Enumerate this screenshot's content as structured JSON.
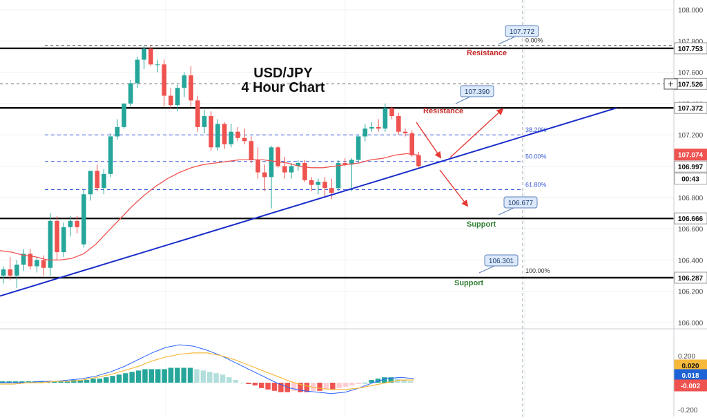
{
  "chart_data": [
    {
      "type": "candlestick",
      "title": "USD/JPY",
      "subtitle": "4 Hour Chart",
      "y_axis": {
        "ylim": [
          105.93,
          108.09
        ],
        "ticks": [
          "108.000",
          "107.800",
          "107.600",
          "107.400",
          "107.200",
          "107.000",
          "106.800",
          "106.600",
          "106.400",
          "106.200",
          "106.000"
        ],
        "position": "right"
      },
      "grid": true,
      "candles": [
        {
          "o": 106.3,
          "h": 106.36,
          "l": 106.25,
          "c": 106.34
        },
        {
          "o": 106.34,
          "h": 106.42,
          "l": 106.27,
          "c": 106.3
        },
        {
          "o": 106.3,
          "h": 106.4,
          "l": 106.22,
          "c": 106.37
        },
        {
          "o": 106.37,
          "h": 106.47,
          "l": 106.33,
          "c": 106.44
        },
        {
          "o": 106.44,
          "h": 106.47,
          "l": 106.34,
          "c": 106.36
        },
        {
          "o": 106.36,
          "h": 106.42,
          "l": 106.32,
          "c": 106.4
        },
        {
          "o": 106.4,
          "h": 106.43,
          "l": 106.3,
          "c": 106.35
        },
        {
          "o": 106.35,
          "h": 106.7,
          "l": 106.3,
          "c": 106.65
        },
        {
          "o": 106.65,
          "h": 106.68,
          "l": 106.4,
          "c": 106.45
        },
        {
          "o": 106.45,
          "h": 106.64,
          "l": 106.42,
          "c": 106.61
        },
        {
          "o": 106.61,
          "h": 106.68,
          "l": 106.55,
          "c": 106.65
        },
        {
          "o": 106.65,
          "h": 106.68,
          "l": 106.57,
          "c": 106.61
        },
        {
          "o": 106.5,
          "h": 106.85,
          "l": 106.48,
          "c": 106.82
        },
        {
          "o": 106.82,
          "h": 106.97,
          "l": 106.78,
          "c": 106.97
        },
        {
          "o": 106.97,
          "h": 107.01,
          "l": 106.84,
          "c": 106.86
        },
        {
          "o": 106.86,
          "h": 106.98,
          "l": 106.82,
          "c": 106.95
        },
        {
          "o": 106.95,
          "h": 107.21,
          "l": 106.93,
          "c": 107.19
        },
        {
          "o": 107.19,
          "h": 107.3,
          "l": 107.17,
          "c": 107.25
        },
        {
          "o": 107.25,
          "h": 107.4,
          "l": 107.24,
          "c": 107.4
        },
        {
          "o": 107.4,
          "h": 107.55,
          "l": 107.38,
          "c": 107.53
        },
        {
          "o": 107.53,
          "h": 107.7,
          "l": 107.5,
          "c": 107.68
        },
        {
          "o": 107.68,
          "h": 107.77,
          "l": 107.62,
          "c": 107.75
        },
        {
          "o": 107.75,
          "h": 107.77,
          "l": 107.64,
          "c": 107.65
        },
        {
          "o": 107.65,
          "h": 107.68,
          "l": 107.6,
          "c": 107.65
        },
        {
          "o": 107.65,
          "h": 107.68,
          "l": 107.38,
          "c": 107.45
        },
        {
          "o": 107.45,
          "h": 107.5,
          "l": 107.37,
          "c": 107.39
        },
        {
          "o": 107.39,
          "h": 107.52,
          "l": 107.35,
          "c": 107.5
        },
        {
          "o": 107.5,
          "h": 107.6,
          "l": 107.44,
          "c": 107.58
        },
        {
          "o": 107.58,
          "h": 107.64,
          "l": 107.38,
          "c": 107.42
        },
        {
          "o": 107.42,
          "h": 107.45,
          "l": 107.22,
          "c": 107.25
        },
        {
          "o": 107.25,
          "h": 107.36,
          "l": 107.21,
          "c": 107.32
        },
        {
          "o": 107.32,
          "h": 107.35,
          "l": 107.1,
          "c": 107.12
        },
        {
          "o": 107.12,
          "h": 107.3,
          "l": 107.1,
          "c": 107.27
        },
        {
          "o": 107.27,
          "h": 107.28,
          "l": 107.11,
          "c": 107.14
        },
        {
          "o": 107.14,
          "h": 107.27,
          "l": 107.12,
          "c": 107.22
        },
        {
          "o": 107.22,
          "h": 107.25,
          "l": 107.16,
          "c": 107.18
        },
        {
          "o": 107.18,
          "h": 107.24,
          "l": 107.14,
          "c": 107.16
        },
        {
          "o": 107.16,
          "h": 107.19,
          "l": 107.02,
          "c": 107.04
        },
        {
          "o": 107.04,
          "h": 107.12,
          "l": 106.92,
          "c": 106.96
        },
        {
          "o": 106.96,
          "h": 107.01,
          "l": 106.84,
          "c": 106.93
        },
        {
          "o": 106.93,
          "h": 107.13,
          "l": 106.73,
          "c": 107.12
        },
        {
          "o": 107.12,
          "h": 107.13,
          "l": 106.99,
          "c": 107.0
        },
        {
          "o": 107.0,
          "h": 107.06,
          "l": 106.92,
          "c": 106.96
        },
        {
          "o": 106.96,
          "h": 107.02,
          "l": 106.92,
          "c": 107.0
        },
        {
          "o": 107.0,
          "h": 107.04,
          "l": 106.97,
          "c": 107.02
        },
        {
          "o": 107.02,
          "h": 107.04,
          "l": 106.9,
          "c": 106.91
        },
        {
          "o": 106.91,
          "h": 106.93,
          "l": 106.84,
          "c": 106.88
        },
        {
          "o": 106.88,
          "h": 106.92,
          "l": 106.82,
          "c": 106.9
        },
        {
          "o": 106.9,
          "h": 106.93,
          "l": 106.8,
          "c": 106.86
        },
        {
          "o": 106.86,
          "h": 106.92,
          "l": 106.79,
          "c": 106.83
        },
        {
          "o": 106.86,
          "h": 107.04,
          "l": 106.84,
          "c": 107.02
        },
        {
          "o": 107.02,
          "h": 107.05,
          "l": 107.0,
          "c": 107.01
        },
        {
          "o": 107.01,
          "h": 107.05,
          "l": 106.84,
          "c": 107.04
        },
        {
          "o": 107.04,
          "h": 107.2,
          "l": 107.02,
          "c": 107.19
        },
        {
          "o": 107.19,
          "h": 107.27,
          "l": 107.16,
          "c": 107.24
        },
        {
          "o": 107.24,
          "h": 107.28,
          "l": 107.22,
          "c": 107.25
        },
        {
          "o": 107.25,
          "h": 107.3,
          "l": 107.22,
          "c": 107.24
        },
        {
          "o": 107.24,
          "h": 107.4,
          "l": 107.22,
          "c": 107.37
        },
        {
          "o": 107.37,
          "h": 107.38,
          "l": 107.3,
          "c": 107.32
        },
        {
          "o": 107.32,
          "h": 107.34,
          "l": 107.2,
          "c": 107.22
        },
        {
          "o": 107.22,
          "h": 107.24,
          "l": 107.19,
          "c": 107.21
        },
        {
          "o": 107.21,
          "h": 107.23,
          "l": 107.06,
          "c": 107.07
        },
        {
          "o": 107.07,
          "h": 107.09,
          "l": 106.99,
          "c": 107.0
        }
      ],
      "moving_average": [
        106.46,
        106.45,
        106.43,
        106.42,
        106.4,
        106.4,
        106.41,
        106.44,
        106.5,
        106.58,
        106.66,
        106.74,
        106.81,
        106.87,
        106.92,
        106.96,
        106.99,
        107.01,
        107.02,
        107.03,
        107.04,
        107.04,
        107.04,
        107.03,
        107.02,
        107.0,
        106.99,
        106.99,
        107.0,
        107.01,
        107.02,
        107.04,
        107.05,
        107.07,
        107.08,
        107.07
      ],
      "horizontal_levels": [
        {
          "label": "107.753",
          "value": 107.753,
          "note": "Resistance"
        },
        {
          "label": "107.372",
          "value": 107.372,
          "note": "Resistance"
        },
        {
          "label": "106.666",
          "value": 106.666,
          "note": "Support"
        },
        {
          "label": "106.287",
          "value": 106.287,
          "note": "Support"
        }
      ],
      "dashed_levels": [
        {
          "label": "107.526",
          "value": 107.526
        },
        {
          "label": "107.772",
          "value": 107.772
        }
      ],
      "fibonacci": [
        {
          "label": "0.00%",
          "value": 107.772
        },
        {
          "label": "38.20%",
          "value": 107.2
        },
        {
          "label": "50.00%",
          "value": 107.03
        },
        {
          "label": "61.80%",
          "value": 106.85
        },
        {
          "label": "100.00%",
          "value": 106.301
        }
      ],
      "callouts": [
        "107.772",
        "107.390",
        "106.677",
        "106.301"
      ],
      "price_tags": [
        {
          "text": "107.074",
          "color": "#ef5350",
          "value": 107.074
        },
        {
          "text": "106.997",
          "color": "#ffffff",
          "value": 106.997
        },
        {
          "text": "00:43",
          "color": "#ffffff",
          "value": 106.92
        }
      ],
      "annotations": {
        "resistance_label": "Resistance",
        "support_label": "Support"
      },
      "colors": {
        "up": "#26a69a",
        "down": "#ef5350",
        "trendline": "#1a2dc9",
        "ma": "#ef5350",
        "level": "#111111",
        "fib": "#3a5bd9",
        "arrow": "#e53935",
        "resistance": "#c62828",
        "support": "#2e7d32"
      }
    },
    {
      "type": "macd",
      "y_axis": {
        "ylim": [
          -0.21,
          0.32
        ],
        "ticks": [
          "0.200",
          "-0.200"
        ],
        "position": "right"
      },
      "histogram": [
        0.01,
        0.01,
        0.01,
        0.01,
        0.01,
        0.01,
        0.01,
        0.01,
        0.01,
        0.01,
        0.01,
        0.02,
        0.02,
        0.02,
        0.03,
        0.03,
        0.04,
        0.05,
        0.06,
        0.07,
        0.08,
        0.09,
        0.1,
        0.1,
        0.1,
        0.1,
        0.11,
        0.11,
        0.11,
        0.11,
        0.1,
        0.09,
        0.08,
        0.07,
        0.06,
        0.04,
        0.02,
        0.0,
        -0.01,
        -0.02,
        -0.04,
        -0.05,
        -0.06,
        -0.07,
        -0.07,
        -0.06,
        -0.07,
        -0.07,
        -0.06,
        -0.06,
        -0.05,
        -0.05,
        -0.04,
        -0.03,
        -0.02,
        -0.01,
        0.0,
        0.02,
        0.03,
        0.04,
        0.04,
        0.03,
        0.02,
        0.01
      ],
      "macd_line": [
        0.0,
        0.0,
        0.0,
        0.01,
        0.01,
        0.02,
        0.03,
        0.05,
        0.08,
        0.12,
        0.17,
        0.22,
        0.26,
        0.28,
        0.27,
        0.24,
        0.2,
        0.15,
        0.1,
        0.05,
        0.0,
        -0.04,
        -0.06,
        -0.07,
        -0.08,
        -0.07,
        -0.04,
        0.0,
        0.03,
        0.04,
        0.03
      ],
      "signal_line": [
        -0.01,
        -0.01,
        0.0,
        0.0,
        0.01,
        0.01,
        0.02,
        0.04,
        0.06,
        0.09,
        0.12,
        0.16,
        0.19,
        0.21,
        0.22,
        0.22,
        0.2,
        0.17,
        0.13,
        0.09,
        0.05,
        0.01,
        -0.02,
        -0.04,
        -0.05,
        -0.05,
        -0.04,
        -0.02,
        0.0,
        0.02,
        0.02
      ],
      "price_tags": [
        {
          "text": "0.020",
          "color": "#f6b93b",
          "value": 0.02
        },
        {
          "text": "0.018",
          "color": "#1e63d6",
          "value": 0.018
        },
        {
          "text": "-0.002",
          "color": "#ef5350",
          "value": -0.002
        }
      ]
    }
  ],
  "toolbar": {
    "plus_label": "+"
  }
}
